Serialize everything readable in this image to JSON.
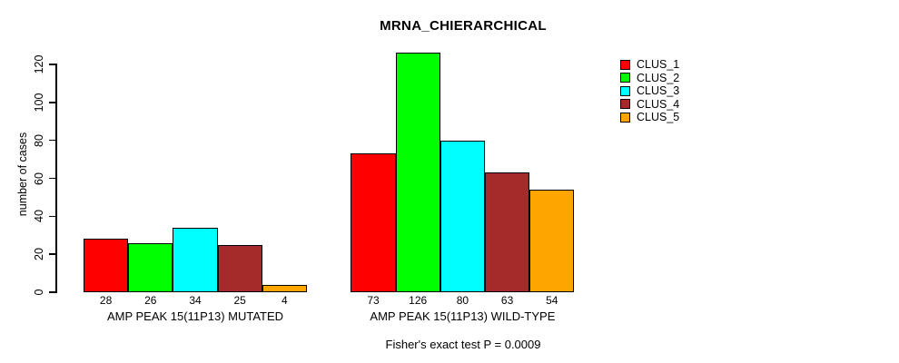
{
  "figure": {
    "background": "#FFFFFF",
    "text_color": "#000000"
  },
  "chart_data": {
    "type": "bar",
    "title": "MRNA_CHIERARCHICAL",
    "xlabel": "",
    "ylabel": "number of cases",
    "ylim": [
      0,
      120
    ],
    "yticks": [
      0,
      20,
      40,
      60,
      80,
      100,
      120
    ],
    "grid": false,
    "bar_border_color": "#000000",
    "legend_position": "right",
    "legend": [
      {
        "label": "CLUS_1",
        "color": "#FF0000"
      },
      {
        "label": "CLUS_2",
        "color": "#00FF00"
      },
      {
        "label": "CLUS_3",
        "color": "#00FFFF"
      },
      {
        "label": "CLUS_4",
        "color": "#A52A2A"
      },
      {
        "label": "CLUS_5",
        "color": "#FFA500"
      }
    ],
    "groups": [
      {
        "label": "AMP PEAK 15(11P13) MUTATED",
        "values": [
          28,
          26,
          34,
          25,
          4
        ]
      },
      {
        "label": "AMP PEAK 15(11P13) WILD-TYPE",
        "values": [
          73,
          126,
          80,
          63,
          54
        ]
      }
    ],
    "bar_value_labels": true,
    "annotation": "Fisher's exact test P = 0.0009"
  }
}
